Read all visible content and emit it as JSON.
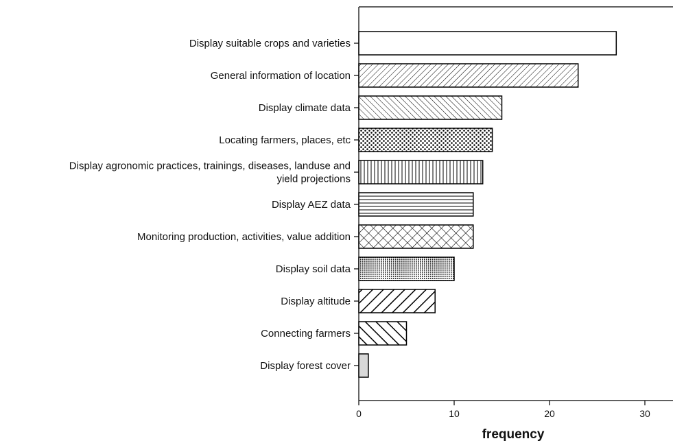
{
  "chart_data": {
    "type": "bar",
    "orientation": "horizontal",
    "categories": [
      "Display suitable crops and varieties",
      "General information of location",
      "Display climate data",
      "Locating farmers, places, etc",
      "Display agronomic practices, trainings, diseases, landuse and yield projections",
      "Display AEZ data",
      "Monitoring production, activities, value addition",
      "Display soil data",
      "Display altitude",
      "Connecting farmers",
      "Display forest cover"
    ],
    "category_lines": [
      [
        "Display suitable crops and varieties"
      ],
      [
        "General information of location"
      ],
      [
        "Display climate data"
      ],
      [
        "Locating farmers, places, etc"
      ],
      [
        "Display agronomic practices, trainings, diseases, landuse and",
        "yield projections"
      ],
      [
        "Display AEZ data"
      ],
      [
        "Monitoring production, activities, value addition"
      ],
      [
        "Display soil data"
      ],
      [
        "Display altitude"
      ],
      [
        "Connecting farmers"
      ],
      [
        "Display forest cover"
      ]
    ],
    "values": [
      27,
      23,
      15,
      14,
      13,
      12,
      12,
      10,
      8,
      5,
      1
    ],
    "patterns": [
      "blank",
      "hatch-back-fine",
      "hatch-fwd-fine",
      "dots",
      "vertical-lines",
      "horizontal-lines",
      "crosshatch",
      "dense-dots",
      "hatch-back-coarse",
      "hatch-fwd-coarse",
      "solid-gray"
    ],
    "colors": {
      "bar_stroke": "#000000",
      "gray_fill": "#d9d9d9"
    },
    "xlabel": "frequency",
    "ylabel": "",
    "title": "",
    "xlim": [
      0,
      32
    ],
    "xticks": [
      0,
      10,
      20,
      30
    ],
    "grid": false,
    "legend": "none"
  }
}
